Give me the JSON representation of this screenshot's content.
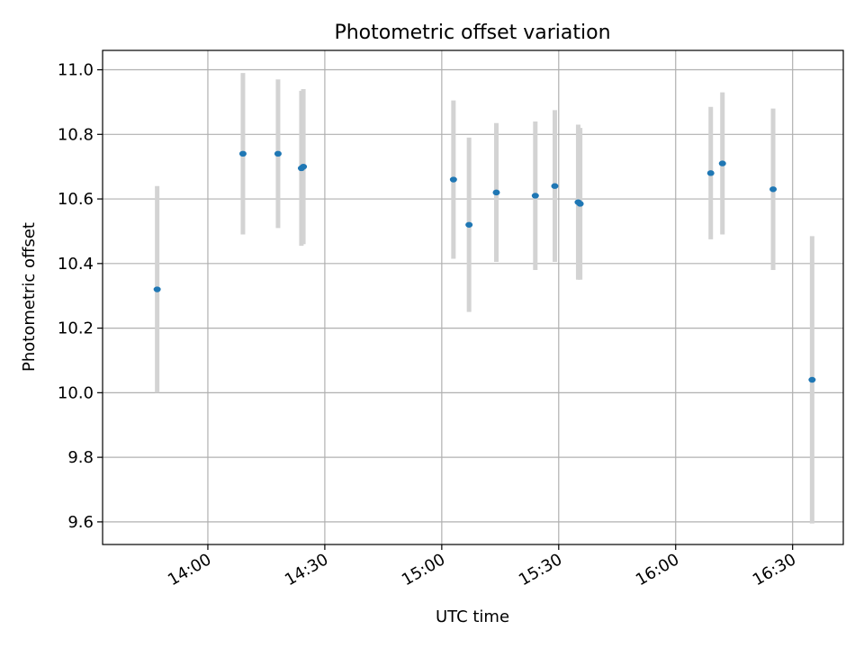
{
  "chart_data": {
    "type": "scatter",
    "title": "Photometric offset variation",
    "xlabel": "UTC time",
    "ylabel": "Photometric offset",
    "x_ticks": [
      "14:00",
      "14:30",
      "15:00",
      "15:30",
      "16:00",
      "16:30"
    ],
    "y_ticks": [
      "9.6",
      "9.8",
      "10.0",
      "10.2",
      "10.4",
      "10.6",
      "10.8",
      "11.0"
    ],
    "xlim": [
      "13:33",
      "16:43"
    ],
    "ylim": [
      9.53,
      11.06
    ],
    "grid": true,
    "errorbar_color": "#d3d3d3",
    "point_color": "#1f77b4",
    "points": [
      {
        "x": "13:47",
        "y": 10.32,
        "err": 0.32
      },
      {
        "x": "14:09",
        "y": 10.74,
        "err": 0.25
      },
      {
        "x": "14:18",
        "y": 10.74,
        "err": 0.23
      },
      {
        "x": "14:24",
        "y": 10.695,
        "err": 0.24
      },
      {
        "x": "14:24.5",
        "y": 10.7,
        "err": 0.24
      },
      {
        "x": "15:03",
        "y": 10.66,
        "err": 0.245
      },
      {
        "x": "15:07",
        "y": 10.52,
        "err": 0.27
      },
      {
        "x": "15:14",
        "y": 10.62,
        "err": 0.215
      },
      {
        "x": "15:24",
        "y": 10.61,
        "err": 0.23
      },
      {
        "x": "15:29",
        "y": 10.64,
        "err": 0.235
      },
      {
        "x": "15:35",
        "y": 10.59,
        "err": 0.24
      },
      {
        "x": "15:35.5",
        "y": 10.585,
        "err": 0.235
      },
      {
        "x": "16:09",
        "y": 10.68,
        "err": 0.205
      },
      {
        "x": "16:12",
        "y": 10.71,
        "err": 0.22
      },
      {
        "x": "16:25",
        "y": 10.63,
        "err": 0.25
      },
      {
        "x": "16:35",
        "y": 10.04,
        "err": 0.445
      }
    ]
  }
}
